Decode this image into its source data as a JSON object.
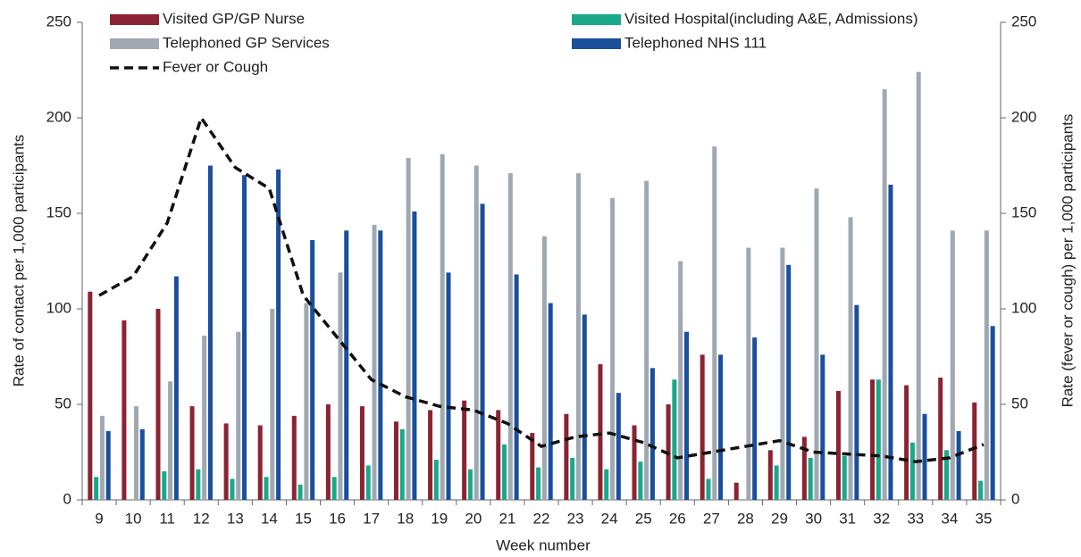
{
  "chart_data": {
    "type": "bar",
    "x_label": "Week number",
    "y_label": "Rate of contact per 1,000 participants",
    "y2_label": "Rate (fever or cough) per 1,000 participants",
    "categories": [
      "9",
      "10",
      "11",
      "12",
      "13",
      "14",
      "15",
      "16",
      "17",
      "18",
      "19",
      "20",
      "21",
      "22",
      "23",
      "24",
      "25",
      "26",
      "27",
      "28",
      "29",
      "30",
      "31",
      "32",
      "33",
      "34",
      "35"
    ],
    "series": [
      {
        "name": "Visited GP/GP Nurse",
        "color": "#8b2332",
        "values": [
          109,
          94,
          100,
          49,
          40,
          39,
          44,
          50,
          49,
          41,
          47,
          52,
          47,
          35,
          45,
          71,
          39,
          50,
          76,
          9,
          26,
          33,
          57,
          63,
          60,
          64,
          51
        ]
      },
      {
        "name": "Visited Hospital(including A&E, Admissions)",
        "color": "#1aa88a",
        "values": [
          12,
          0,
          15,
          16,
          11,
          12,
          8,
          12,
          18,
          37,
          21,
          16,
          29,
          17,
          22,
          16,
          20,
          63,
          11,
          0,
          18,
          22,
          23,
          63,
          30,
          26,
          10
        ]
      },
      {
        "name": "Telephoned GP Services",
        "color": "#a0a8b2",
        "values": [
          44,
          49,
          62,
          86,
          88,
          100,
          103,
          119,
          144,
          179,
          181,
          175,
          171,
          138,
          171,
          158,
          167,
          125,
          185,
          132,
          132,
          163,
          148,
          215,
          224,
          141,
          141
        ]
      },
      {
        "name": "Telephoned NHS 111",
        "color": "#1a4f9c",
        "values": [
          36,
          37,
          117,
          175,
          170,
          173,
          136,
          141,
          141,
          151,
          119,
          155,
          118,
          103,
          97,
          56,
          69,
          88,
          76,
          85,
          123,
          76,
          102,
          165,
          45,
          36,
          91
        ]
      },
      {
        "name": "Fever or Cough",
        "color": "#111111",
        "type": "line",
        "axis": "y2",
        "values": [
          107,
          117,
          145,
          200,
          174,
          163,
          107,
          85,
          63,
          54,
          49,
          47,
          40,
          28,
          33,
          35,
          30,
          22,
          25,
          28,
          31,
          25,
          24,
          23,
          20,
          22,
          29
        ]
      }
    ],
    "ylim": [
      0,
      250
    ],
    "yticks": [
      0,
      50,
      100,
      150,
      200,
      250
    ],
    "y2lim": [
      0,
      250
    ],
    "y2ticks": [
      0,
      50,
      100,
      150,
      200,
      250
    ]
  }
}
